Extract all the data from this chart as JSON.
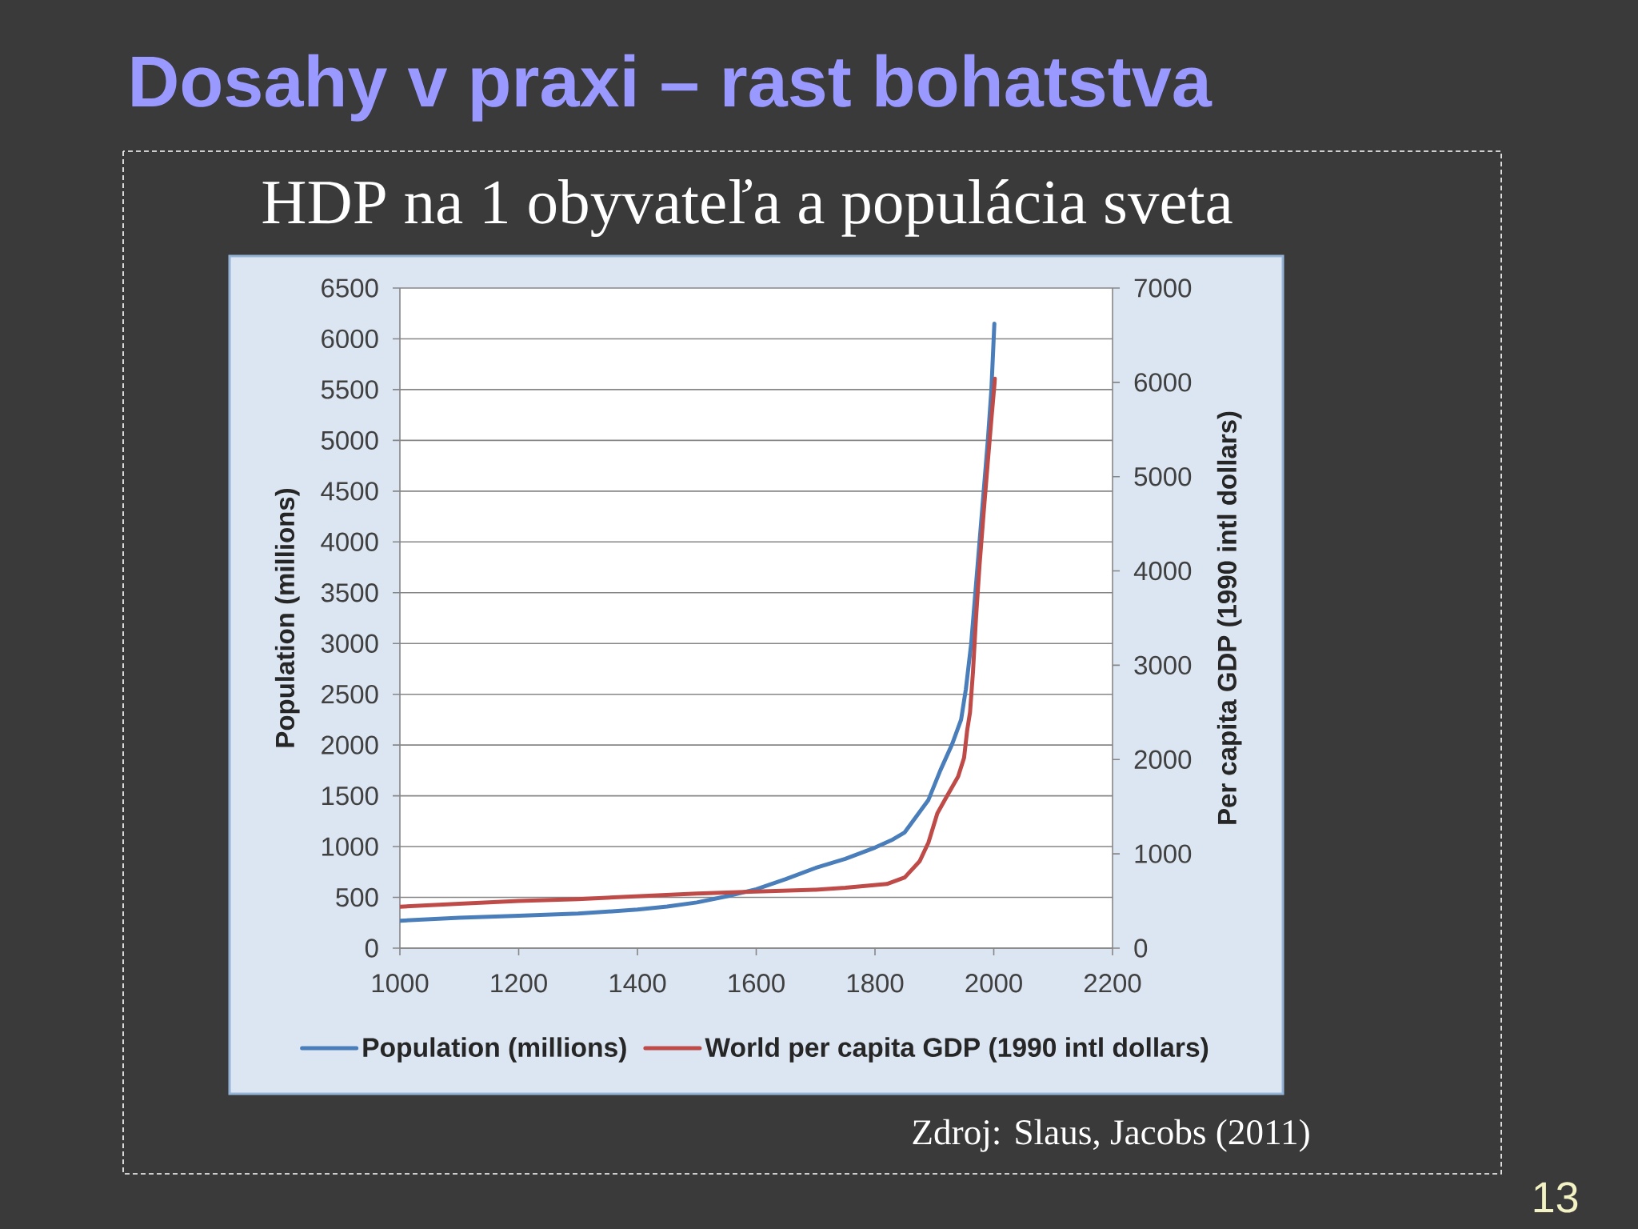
{
  "chart_data": {
    "type": "line",
    "title": "Dosahy v praxi – rast bohatstva",
    "subtitle": "HDP na 1 obyvateľa a populácia sveta",
    "ylabel": "Population (millions)",
    "y2label": "Per capita GDP (1990 intl dollars)",
    "xlim": [
      1000,
      2200
    ],
    "xticks": [
      1000,
      1200,
      1400,
      1600,
      1800,
      2000,
      2200
    ],
    "ylim": [
      0,
      6500
    ],
    "yticks": [
      0,
      500,
      1000,
      1500,
      2000,
      2500,
      3000,
      3500,
      4000,
      4500,
      5000,
      5500,
      6000,
      6500
    ],
    "y2lim": [
      0,
      7000
    ],
    "y2ticks": [
      0,
      1000,
      2000,
      3000,
      4000,
      5000,
      6000,
      7000
    ],
    "grid": "y",
    "legend": "bottom",
    "marker": "none",
    "line_style": "solid",
    "series": [
      {
        "name": "Population (millions)",
        "color": "#4a7ebb",
        "x": [
          1000,
          1100,
          1200,
          1300,
          1400,
          1450,
          1500,
          1550,
          1600,
          1650,
          1700,
          1750,
          1800,
          1830,
          1850,
          1870,
          1890,
          1910,
          1930,
          1945,
          1953,
          1962,
          1969,
          1976,
          1983,
          1990,
          1996,
          2001
        ],
        "values": [
          270,
          300,
          320,
          340,
          380,
          410,
          450,
          510,
          580,
          680,
          790,
          880,
          990,
          1070,
          1140,
          1300,
          1460,
          1750,
          2010,
          2250,
          2550,
          3000,
          3500,
          4000,
          4500,
          5000,
          5500,
          6150
        ]
      },
      {
        "name": "World per capita GDP (1990 intl dollars)",
        "color": "#be4b48",
        "axis": "y2",
        "x": [
          1000,
          1100,
          1200,
          1300,
          1400,
          1500,
          1600,
          1700,
          1750,
          1820,
          1850,
          1875,
          1890,
          1905,
          1920,
          1940,
          1950,
          1955,
          1960,
          1965,
          1970,
          1976,
          1983,
          1990,
          1996,
          2002
        ],
        "values": [
          440,
          470,
          500,
          520,
          550,
          580,
          600,
          620,
          640,
          680,
          750,
          920,
          1120,
          1430,
          1600,
          1820,
          2020,
          2300,
          2500,
          2930,
          3490,
          4060,
          4620,
          5160,
          5610,
          6040
        ]
      }
    ],
    "annotations": [
      "Zdroj: Slaus, Jacobs (2011)",
      "13"
    ]
  }
}
